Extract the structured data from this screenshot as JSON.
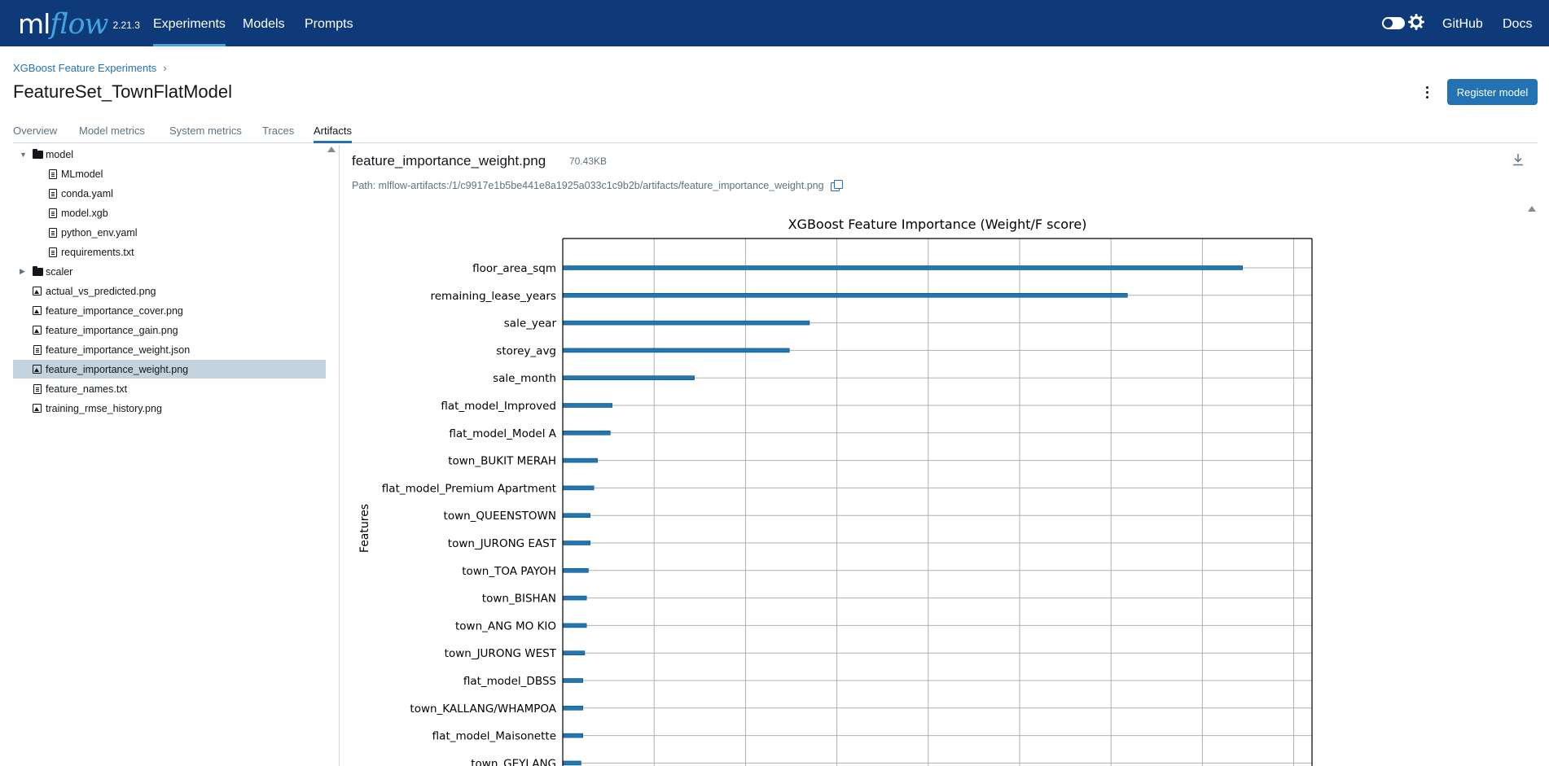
{
  "app": {
    "logo_ml": "ml",
    "logo_flow": "flow",
    "version": "2.21.3",
    "nav": [
      {
        "label": "Experiments",
        "active": true
      },
      {
        "label": "Models",
        "active": false
      },
      {
        "label": "Prompts",
        "active": false
      }
    ],
    "right_links": [
      {
        "label": "GitHub"
      },
      {
        "label": "Docs"
      }
    ],
    "colors": {
      "nav_bg": "#0e3a7a",
      "accent": "#2272b4",
      "logo_accent": "#43a4e0"
    }
  },
  "breadcrumb": {
    "parent": "XGBoost Feature Experiments",
    "separator": "›"
  },
  "page": {
    "title": "FeatureSet_TownFlatModel",
    "register_button": "Register model"
  },
  "tabs": [
    {
      "label": "Overview",
      "active": false
    },
    {
      "label": "Model metrics",
      "active": false
    },
    {
      "label": "System metrics",
      "active": false
    },
    {
      "label": "Traces",
      "active": false
    },
    {
      "label": "Artifacts",
      "active": true
    }
  ],
  "tree": [
    {
      "label": "model",
      "kind": "folder",
      "expanded": true,
      "depth": 0
    },
    {
      "label": "MLmodel",
      "kind": "file",
      "depth": 1
    },
    {
      "label": "conda.yaml",
      "kind": "file",
      "depth": 1
    },
    {
      "label": "model.xgb",
      "kind": "file",
      "depth": 1
    },
    {
      "label": "python_env.yaml",
      "kind": "file",
      "depth": 1
    },
    {
      "label": "requirements.txt",
      "kind": "file",
      "depth": 1
    },
    {
      "label": "scaler",
      "kind": "folder",
      "expanded": false,
      "depth": 0
    },
    {
      "label": "actual_vs_predicted.png",
      "kind": "image",
      "depth": 0
    },
    {
      "label": "feature_importance_cover.png",
      "kind": "image",
      "depth": 0
    },
    {
      "label": "feature_importance_gain.png",
      "kind": "image",
      "depth": 0
    },
    {
      "label": "feature_importance_weight.json",
      "kind": "file",
      "depth": 0
    },
    {
      "label": "feature_importance_weight.png",
      "kind": "image",
      "depth": 0,
      "selected": true
    },
    {
      "label": "feature_names.txt",
      "kind": "file",
      "depth": 0
    },
    {
      "label": "training_rmse_history.png",
      "kind": "image",
      "depth": 0
    }
  ],
  "artifact": {
    "file_name": "feature_importance_weight.png",
    "file_size": "70.43KB",
    "path": "Path: mlflow-artifacts:/1/c9917e1b5be441e8a1925a033c1c9b2b/artifacts/feature_importance_weight.png"
  },
  "chart_data": {
    "type": "bar",
    "orientation": "horizontal",
    "title": "XGBoost Feature Importance (Weight/F score)",
    "ylabel": "Features",
    "xlabel": "",
    "xlim": [
      0,
      410
    ],
    "x_gridlines": [
      50,
      100,
      150,
      200,
      250,
      300,
      350,
      400
    ],
    "grid": true,
    "bar_color": "#1f77b4",
    "categories": [
      "floor_area_sqm",
      "remaining_lease_years",
      "sale_year",
      "storey_avg",
      "sale_month",
      "flat_model_Improved",
      "flat_model_Model A",
      "town_BUKIT MERAH",
      "flat_model_Premium Apartment",
      "town_QUEENSTOWN",
      "town_JURONG EAST",
      "town_TOA PAYOH",
      "town_BISHAN",
      "town_ANG MO KIO",
      "town_JURONG WEST",
      "flat_model_DBSS",
      "town_KALLANG/WHAMPOA",
      "flat_model_Maisonette",
      "town_GEYLANG"
    ],
    "values": [
      372,
      309,
      135,
      124,
      72,
      27,
      26,
      19,
      17,
      15,
      15,
      14,
      13,
      13,
      12,
      11,
      11,
      11,
      10
    ]
  }
}
